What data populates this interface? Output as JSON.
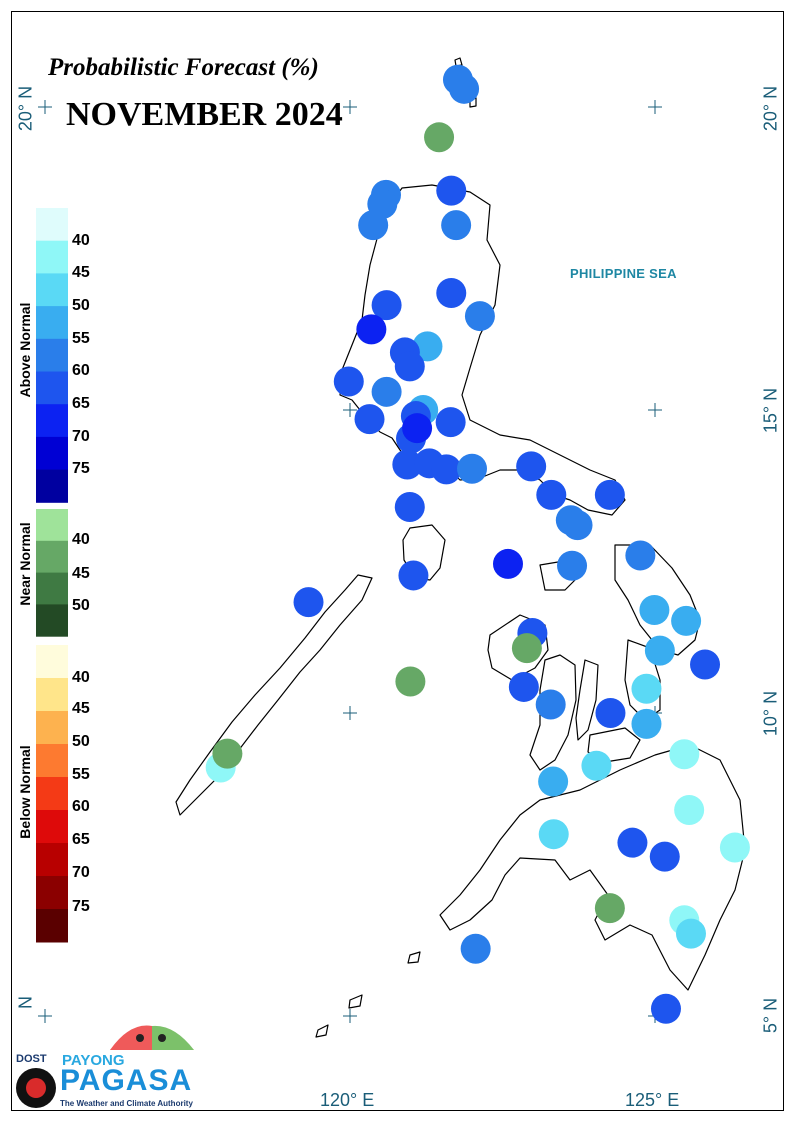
{
  "subtitle": "Probabilistic Forecast (%)",
  "title": "NOVEMBER 2024",
  "sea_label": "PHILIPPINE SEA",
  "lat_labels": {
    "n20": "20° N",
    "n15": "15° N",
    "n10": "10° N",
    "n5": "5° N",
    "n_partial": "N"
  },
  "lon_labels": {
    "e120": "120° E",
    "e125": "125° E"
  },
  "legend": {
    "above": {
      "name": "Above Normal",
      "ticks": [
        "40",
        "45",
        "50",
        "55",
        "60",
        "65",
        "70",
        "75"
      ],
      "colors": [
        "#dffcfc",
        "#8ff7f7",
        "#5ad9f5",
        "#39adf0",
        "#2a7eea",
        "#1e55ee",
        "#0c22f2",
        "#0000d4",
        "#0000a0"
      ]
    },
    "near": {
      "name": "Near Normal",
      "ticks": [
        "40",
        "45",
        "50"
      ],
      "colors": [
        "#9fe39a",
        "#66a866",
        "#3f7a43",
        "#234a25"
      ]
    },
    "below": {
      "name": "Below Normal",
      "ticks": [
        "40",
        "45",
        "50",
        "55",
        "60",
        "65",
        "70",
        "75"
      ],
      "colors": [
        "#fffcdc",
        "#ffe58a",
        "#fdb24f",
        "#fd7a30",
        "#f43a16",
        "#de0a0a",
        "#b80000",
        "#8b0000",
        "#5a0000"
      ]
    }
  },
  "logo": {
    "dost": "DOST",
    "payong": "PAYONG",
    "pagasa": "PAGASA",
    "tagline": "The Weather and Climate Authority"
  },
  "stations": [
    {
      "lon": 121.77,
      "lat": 20.45,
      "category": "above",
      "pct": 55
    },
    {
      "lon": 121.87,
      "lat": 20.3,
      "category": "above",
      "pct": 55
    },
    {
      "lon": 121.46,
      "lat": 19.5,
      "category": "near",
      "pct": 40
    },
    {
      "lon": 120.59,
      "lat": 18.55,
      "category": "above",
      "pct": 55
    },
    {
      "lon": 120.53,
      "lat": 18.4,
      "category": "above",
      "pct": 55
    },
    {
      "lon": 121.66,
      "lat": 18.62,
      "category": "above",
      "pct": 60
    },
    {
      "lon": 121.74,
      "lat": 18.05,
      "category": "above",
      "pct": 55
    },
    {
      "lon": 120.38,
      "lat": 18.05,
      "category": "above",
      "pct": 55
    },
    {
      "lon": 121.66,
      "lat": 16.93,
      "category": "above",
      "pct": 60
    },
    {
      "lon": 122.13,
      "lat": 16.55,
      "category": "above",
      "pct": 55
    },
    {
      "lon": 120.6,
      "lat": 16.73,
      "category": "above",
      "pct": 60
    },
    {
      "lon": 120.35,
      "lat": 16.33,
      "category": "above",
      "pct": 65
    },
    {
      "lon": 121.27,
      "lat": 16.05,
      "category": "above",
      "pct": 50
    },
    {
      "lon": 120.9,
      "lat": 15.95,
      "category": "above",
      "pct": 60
    },
    {
      "lon": 120.98,
      "lat": 15.72,
      "category": "above",
      "pct": 60
    },
    {
      "lon": 119.98,
      "lat": 15.47,
      "category": "above",
      "pct": 60
    },
    {
      "lon": 120.6,
      "lat": 15.3,
      "category": "above",
      "pct": 55
    },
    {
      "lon": 121.2,
      "lat": 15.0,
      "category": "above",
      "pct": 50
    },
    {
      "lon": 121.08,
      "lat": 14.9,
      "category": "above",
      "pct": 60
    },
    {
      "lon": 121.65,
      "lat": 14.8,
      "category": "above",
      "pct": 60
    },
    {
      "lon": 120.32,
      "lat": 14.85,
      "category": "above",
      "pct": 60
    },
    {
      "lon": 121.0,
      "lat": 14.53,
      "category": "above",
      "pct": 60
    },
    {
      "lon": 121.1,
      "lat": 14.7,
      "category": "above",
      "pct": 65
    },
    {
      "lon": 120.94,
      "lat": 14.1,
      "category": "above",
      "pct": 60
    },
    {
      "lon": 121.3,
      "lat": 14.12,
      "category": "above",
      "pct": 60
    },
    {
      "lon": 121.58,
      "lat": 14.02,
      "category": "above",
      "pct": 60
    },
    {
      "lon": 122.0,
      "lat": 14.03,
      "category": "above",
      "pct": 55
    },
    {
      "lon": 122.97,
      "lat": 14.07,
      "category": "above",
      "pct": 60
    },
    {
      "lon": 120.98,
      "lat": 13.4,
      "category": "above",
      "pct": 60
    },
    {
      "lon": 123.3,
      "lat": 13.6,
      "category": "above",
      "pct": 60
    },
    {
      "lon": 124.26,
      "lat": 13.6,
      "category": "above",
      "pct": 60
    },
    {
      "lon": 123.62,
      "lat": 13.18,
      "category": "above",
      "pct": 55
    },
    {
      "lon": 123.73,
      "lat": 13.1,
      "category": "above",
      "pct": 55
    },
    {
      "lon": 124.76,
      "lat": 12.6,
      "category": "above",
      "pct": 55
    },
    {
      "lon": 122.59,
      "lat": 12.46,
      "category": "above",
      "pct": 65
    },
    {
      "lon": 123.64,
      "lat": 12.43,
      "category": "above",
      "pct": 55
    },
    {
      "lon": 121.04,
      "lat": 12.27,
      "category": "above",
      "pct": 60
    },
    {
      "lon": 119.32,
      "lat": 11.83,
      "category": "above",
      "pct": 60
    },
    {
      "lon": 122.99,
      "lat": 11.32,
      "category": "above",
      "pct": 60
    },
    {
      "lon": 122.9,
      "lat": 11.07,
      "category": "near",
      "pct": 40
    },
    {
      "lon": 124.99,
      "lat": 11.7,
      "category": "above",
      "pct": 50
    },
    {
      "lon": 125.51,
      "lat": 11.52,
      "category": "above",
      "pct": 50
    },
    {
      "lon": 125.08,
      "lat": 11.03,
      "category": "above",
      "pct": 50
    },
    {
      "lon": 125.82,
      "lat": 10.8,
      "category": "above",
      "pct": 60
    },
    {
      "lon": 120.99,
      "lat": 10.52,
      "category": "near",
      "pct": 40
    },
    {
      "lon": 122.85,
      "lat": 10.43,
      "category": "above",
      "pct": 60
    },
    {
      "lon": 123.29,
      "lat": 10.14,
      "category": "above",
      "pct": 55
    },
    {
      "lon": 124.27,
      "lat": 10.0,
      "category": "above",
      "pct": 60
    },
    {
      "lon": 124.86,
      "lat": 10.4,
      "category": "above",
      "pct": 45
    },
    {
      "lon": 124.86,
      "lat": 9.82,
      "category": "above",
      "pct": 50
    },
    {
      "lon": 125.48,
      "lat": 9.32,
      "category": "above",
      "pct": 40
    },
    {
      "lon": 124.04,
      "lat": 9.13,
      "category": "above",
      "pct": 45
    },
    {
      "lon": 123.33,
      "lat": 8.87,
      "category": "above",
      "pct": 50
    },
    {
      "lon": 117.88,
      "lat": 9.1,
      "category": "above",
      "pct": 40
    },
    {
      "lon": 117.99,
      "lat": 9.33,
      "category": "near",
      "pct": 40
    },
    {
      "lon": 125.56,
      "lat": 8.4,
      "category": "above",
      "pct": 40
    },
    {
      "lon": 123.34,
      "lat": 8.0,
      "category": "above",
      "pct": 45
    },
    {
      "lon": 124.63,
      "lat": 7.86,
      "category": "above",
      "pct": 60
    },
    {
      "lon": 125.16,
      "lat": 7.63,
      "category": "above",
      "pct": 60
    },
    {
      "lon": 126.31,
      "lat": 7.78,
      "category": "above",
      "pct": 40
    },
    {
      "lon": 124.26,
      "lat": 6.78,
      "category": "near",
      "pct": 40
    },
    {
      "lon": 125.48,
      "lat": 6.58,
      "category": "above",
      "pct": 40
    },
    {
      "lon": 125.59,
      "lat": 6.36,
      "category": "above",
      "pct": 45
    },
    {
      "lon": 122.06,
      "lat": 6.11,
      "category": "above",
      "pct": 55
    },
    {
      "lon": 125.18,
      "lat": 5.12,
      "category": "above",
      "pct": 60
    }
  ]
}
